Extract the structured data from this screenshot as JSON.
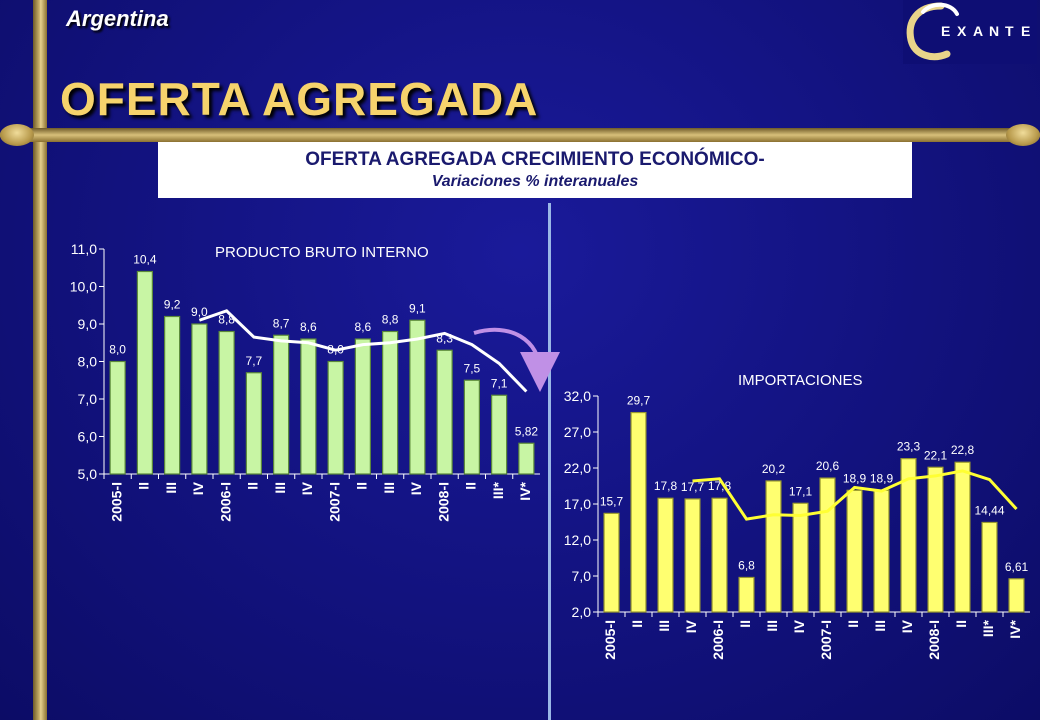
{
  "header": {
    "country": "Argentina",
    "title": "OFERTA AGREGADA",
    "subtitle_line1": "OFERTA AGREGADA CRECIMIENTO ECONÓMICO-",
    "subtitle_line2": "Variaciones  % interanuales"
  },
  "logo": {
    "text": "EXANTE"
  },
  "colors": {
    "background": "#12127e",
    "gold": "#c9b06a",
    "title_gold": "#f6d36c",
    "left_bars": "#c8f5a4",
    "right_bars": "#ffff70",
    "right_line": "#ffff33",
    "left_line": "#ffffff",
    "arrow": "#c090e6"
  },
  "chart_data": [
    {
      "type": "bar",
      "title": "PRODUCTO BRUTO INTERNO",
      "categories": [
        "2005-I",
        "II",
        "III",
        "IV",
        "2006-I",
        "II",
        "III",
        "IV",
        "2007-I",
        "II",
        "III",
        "IV",
        "2008-I",
        "II",
        "III*",
        "IV*"
      ],
      "values": [
        8.0,
        10.4,
        9.2,
        9.0,
        8.8,
        7.7,
        8.7,
        8.6,
        8.0,
        8.6,
        8.8,
        9.1,
        8.3,
        7.5,
        7.1,
        5.82
      ],
      "value_labels": [
        "8,0",
        "10,4",
        "9,2",
        "9,0",
        "8,8",
        "7,7",
        "8,7",
        "8,6",
        "8,0",
        "8,6",
        "8,8",
        "9,1",
        "8,3",
        "7,5",
        "7,1",
        "5,82"
      ],
      "line": [
        null,
        null,
        null,
        9.1,
        9.35,
        8.65,
        8.55,
        8.5,
        8.3,
        8.45,
        8.5,
        8.6,
        8.75,
        8.45,
        7.95,
        7.2
      ],
      "ylim": [
        5.0,
        11.0
      ],
      "yticks": [
        "5,0",
        "6,0",
        "7,0",
        "8,0",
        "9,0",
        "10,0",
        "11,0"
      ],
      "grid": false
    },
    {
      "type": "bar",
      "title": "IMPORTACIONES",
      "categories": [
        "2005-I",
        "II",
        "III",
        "IV",
        "2006-I",
        "II",
        "III",
        "IV",
        "2007-I",
        "II",
        "III",
        "IV",
        "2008-I",
        "II",
        "III*",
        "IV*"
      ],
      "values": [
        15.7,
        29.7,
        17.8,
        17.7,
        17.8,
        6.8,
        20.2,
        17.1,
        20.6,
        18.9,
        18.9,
        23.3,
        22.1,
        22.8,
        14.44,
        6.61
      ],
      "value_labels": [
        "15,7",
        "29,7",
        "17,8",
        "17,7",
        "17,8",
        "6,8",
        "20,2",
        "17,1",
        "20,6",
        "18,9",
        "18,9",
        "23,3",
        "22,1",
        "22,8",
        "14,44",
        "6,61"
      ],
      "line": [
        null,
        null,
        null,
        20.2,
        20.5,
        14.9,
        15.5,
        15.4,
        16.0,
        19.3,
        18.8,
        20.5,
        20.9,
        21.6,
        20.4,
        16.3
      ],
      "ylim": [
        2.0,
        32.0
      ],
      "yticks": [
        "2,0",
        "7,0",
        "12,0",
        "17,0",
        "22,0",
        "27,0",
        "32,0"
      ],
      "grid": false
    }
  ]
}
